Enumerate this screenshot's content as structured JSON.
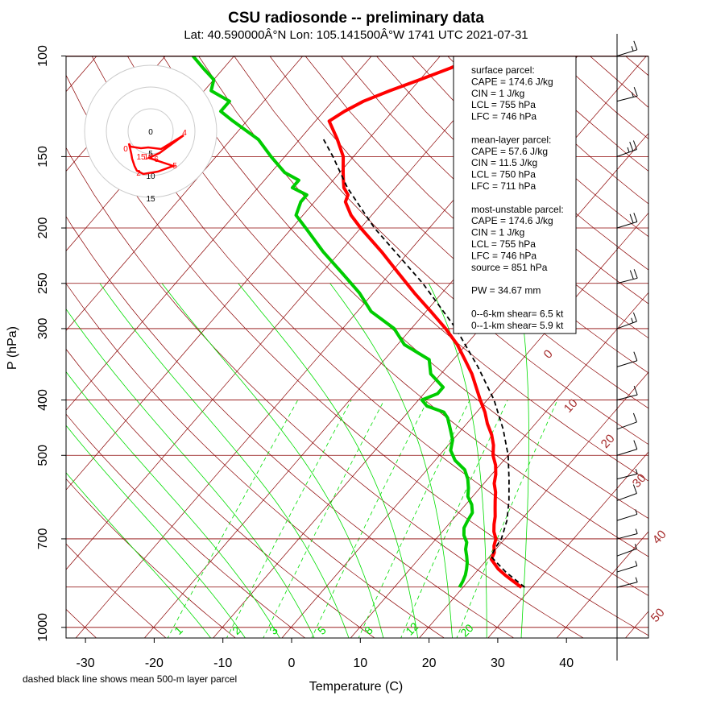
{
  "header": {
    "title": "CSU radiosonde -- preliminary data",
    "subtitle": "Lat: 40.590000Â°N Lon: 105.141500Â°W    1741 UTC  2021-07-31"
  },
  "footnote": "dashed black line shows mean 500-m layer parcel",
  "stats_box": {
    "lines": [
      "surface parcel:",
      "CAPE = 174.6 J/kg",
      "CIN = 1 J/kg",
      "LCL = 755 hPa",
      "LFC = 746 hPa",
      "",
      "mean-layer parcel:",
      "CAPE = 57.6 J/kg",
      "CIN = 11.5 J/kg",
      "LCL = 750 hPa",
      "LFC = 711 hPa",
      "",
      "most-unstable parcel:",
      "CAPE = 174.6 J/kg",
      "CIN = 1 J/kg",
      "LCL = 755 hPa",
      "LFC = 746 hPa",
      "source = 851 hPa",
      "",
      "PW =  34.67 mm",
      "",
      "0--6-km shear= 6.5 kt",
      "0--1-km shear= 5.9 kt"
    ]
  },
  "colors": {
    "temperature": "#ff0000",
    "dewpoint": "#00cc00",
    "parcel": "#000000",
    "isobar": "#8b0000",
    "isotherm": "#8b0000",
    "dry_adiabat": "#8b0000",
    "moist_adiabat": "#00dd00",
    "mixing_ratio": "#00dd00",
    "isotherm_label": "#a52a2a"
  },
  "chart_data": {
    "type": "line",
    "title": "CSU radiosonde -- preliminary data",
    "xlabel": "Temperature (C)",
    "ylabel": "P (hPa)",
    "xlim": [
      -35,
      47
    ],
    "ylim": [
      1050,
      100
    ],
    "y_scale": "log",
    "x_ticks": [
      -30,
      -20,
      -10,
      0,
      10,
      20,
      30,
      40
    ],
    "y_ticks": [
      1000,
      700,
      500,
      400,
      300,
      250,
      200,
      150,
      100
    ],
    "isotherm_labels": [
      "0",
      "10",
      "20",
      "30",
      "40",
      "50"
    ],
    "mixing_ratio_labels": [
      "1",
      "2",
      "3",
      "5",
      "8",
      "12",
      "20"
    ],
    "series": [
      {
        "label": "temperature",
        "pressure": [
          851,
          830,
          810,
          790,
          760,
          740,
          720,
          700,
          680,
          660,
          640,
          620,
          600,
          580,
          560,
          540,
          520,
          500,
          480,
          460,
          440,
          420,
          400,
          380,
          360,
          340,
          320,
          300,
          280,
          260,
          240,
          220,
          200,
          190,
          180,
          175,
          170,
          165,
          160,
          150,
          140,
          130,
          125,
          120,
          115,
          110,
          105,
          100
        ],
        "temp": [
          28.5,
          26.5,
          24.6,
          22.8,
          20.6,
          20.2,
          19.3,
          18.7,
          17.5,
          16.6,
          15.8,
          14.8,
          13.8,
          12.8,
          11.5,
          10.6,
          9.4,
          7.8,
          6.6,
          5.0,
          3.0,
          1.2,
          -1.0,
          -3.2,
          -5.5,
          -8.3,
          -11.3,
          -15.0,
          -19.3,
          -24.0,
          -28.8,
          -34.0,
          -40.0,
          -43.0,
          -45.5,
          -46.0,
          -47.5,
          -48.5,
          -49.5,
          -51.5,
          -54.5,
          -58.0,
          -57.0,
          -55.5,
          -53.0,
          -50.0,
          -47.0,
          -44.5
        ]
      },
      {
        "label": "dewpoint",
        "pressure": [
          851,
          830,
          810,
          790,
          770,
          750,
          730,
          710,
          690,
          670,
          650,
          630,
          610,
          590,
          570,
          550,
          530,
          510,
          490,
          470,
          450,
          430,
          420,
          410,
          400,
          390,
          380,
          360,
          340,
          320,
          300,
          280,
          260,
          240,
          220,
          200,
          190,
          180,
          175,
          170,
          165,
          160,
          150,
          140,
          130,
          125,
          120,
          115,
          110,
          105,
          100
        ],
        "dewpt": [
          19.5,
          19.2,
          18.8,
          18.2,
          17.5,
          16.6,
          15.6,
          14.9,
          13.6,
          12.7,
          12.3,
          12.0,
          10.9,
          9.3,
          8.3,
          7.1,
          5.5,
          2.9,
          1.0,
          0.0,
          -1.7,
          -3.5,
          -4.8,
          -8.0,
          -9.5,
          -8.0,
          -8.0,
          -11.5,
          -13.5,
          -19.0,
          -22.5,
          -28.0,
          -32.0,
          -37.0,
          -42.5,
          -48.0,
          -51.0,
          -52.0,
          -52.0,
          -55.0,
          -55.0,
          -58.0,
          -62.0,
          -66.0,
          -72.0,
          -75.0,
          -75.0,
          -79.0,
          -80.0,
          -83.0,
          -86.0
        ]
      },
      {
        "label": "parcel (mean 500-m layer)",
        "pressure": [
          851,
          800,
          755,
          740,
          720,
          700,
          650,
          600,
          550,
          500,
          450,
          400,
          350,
          300,
          250,
          200,
          170,
          150,
          140
        ],
        "temp": [
          29.0,
          24.3,
          20.5,
          20.0,
          19.7,
          19.5,
          18.0,
          15.8,
          13.1,
          10.0,
          6.0,
          1.0,
          -5.5,
          -13.5,
          -24.0,
          -38.0,
          -47.0,
          -53.0,
          -56.5
        ]
      }
    ],
    "wind_barbs": {
      "pressure": [
        851,
        800,
        750,
        700,
        650,
        600,
        550,
        500,
        450,
        400,
        350,
        300,
        250,
        200,
        150,
        120,
        100
      ],
      "speed_kt": [
        5,
        5,
        5,
        5,
        5,
        10,
        5,
        10,
        10,
        10,
        10,
        15,
        20,
        20,
        25,
        15,
        15
      ]
    },
    "hodograph": {
      "ring_labels": [
        "0",
        "5",
        "10",
        "15"
      ],
      "points_labels": [
        "0",
        "2",
        "4",
        "5",
        "6",
        "10",
        "15"
      ]
    }
  }
}
